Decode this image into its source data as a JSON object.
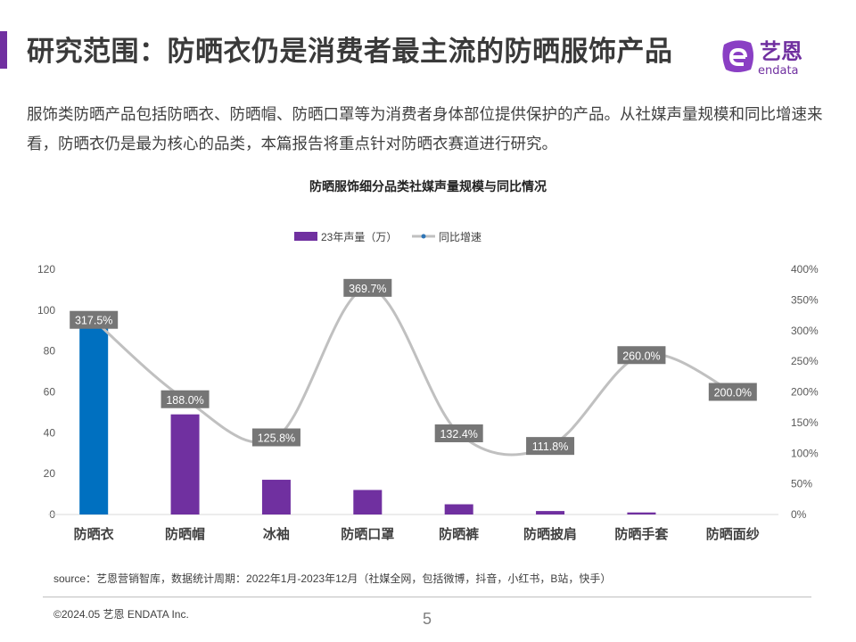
{
  "header": {
    "title": "研究范围：防晒衣仍是消费者最主流的防晒服饰产品",
    "logo_text": "艺恩",
    "logo_sub": "endata"
  },
  "intro": "服饰类防晒产品包括防晒衣、防晒帽、防晒口罩等为消费者身体部位提供保护的产品。从社媒声量规模和同比增速来看，防晒衣仍是最为核心的品类，本篇报告将重点针对防晒衣赛道进行研究。",
  "chart_data": {
    "type": "bar+line",
    "title": "防晒服饰细分品类社媒声量规模与同比情况",
    "legend_position": "top",
    "categories": [
      "防晒衣",
      "防晒帽",
      "冰袖",
      "防晒口罩",
      "防晒裤",
      "防晒披肩",
      "防晒手套",
      "防晒面纱"
    ],
    "series": [
      {
        "name": "23年声量（万）",
        "type": "bar",
        "axis": "left",
        "values": [
          91,
          49,
          17,
          12,
          5,
          1.7,
          1,
          0
        ],
        "color": "#7030a0",
        "highlight_color": "#0070c0",
        "highlight_index": 0
      },
      {
        "name": "同比增速",
        "type": "line",
        "axis": "right",
        "values": [
          317.5,
          188.0,
          125.8,
          369.7,
          132.4,
          111.8,
          260.0,
          200.0
        ],
        "labels": [
          "317.5%",
          "188.0%",
          "125.8%",
          "369.7%",
          "132.4%",
          "111.8%",
          "260.0%",
          "200.0%"
        ],
        "color": "#c0c0c0",
        "marker_color": "#2e75b6"
      }
    ],
    "left_axis": {
      "ylim": [
        0,
        120
      ],
      "ticks": [
        "0",
        "20",
        "40",
        "60",
        "80",
        "100",
        "120"
      ]
    },
    "right_axis": {
      "ylim": [
        0,
        400
      ],
      "ticks": [
        "0%",
        "50%",
        "100%",
        "150%",
        "200%",
        "250%",
        "300%",
        "350%",
        "400%"
      ]
    },
    "grid": false
  },
  "footer": {
    "source": "source：艺恩营销智库，数据统计周期：2022年1月-2023年12月（社媒全网，包括微博，抖音，小红书，B站，快手）",
    "copyright": "©2024.05  艺恩 ENDATA Inc.",
    "page": "5"
  }
}
